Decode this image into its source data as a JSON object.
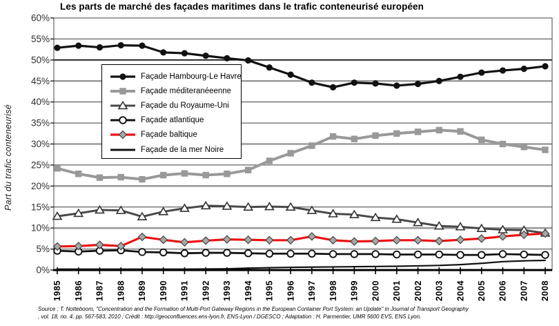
{
  "chart_data": {
    "type": "line",
    "title": "Les parts de marché des façades maritimes dans le trafic conteneurisé européen",
    "ylabel": "Part du trafic conteneurisé",
    "xlabel": "",
    "x": [
      1985,
      1986,
      1987,
      1988,
      1989,
      1990,
      1991,
      1992,
      1993,
      1994,
      1995,
      1996,
      1997,
      1998,
      1999,
      2000,
      2001,
      2002,
      2003,
      2004,
      2005,
      2006,
      2007,
      2008
    ],
    "ylim": [
      0,
      60
    ],
    "ytick_step": 5,
    "ytick_suffix": "%",
    "grid": true,
    "legend_position": "inside-upper-left",
    "gridline_styles": {
      "gray_thick": [
        10,
        20,
        30,
        45
      ],
      "dark_medium": [
        50
      ],
      "thin": [
        5,
        15,
        25,
        35,
        40,
        55
      ]
    },
    "series": [
      {
        "name": "Façade Hambourg-Le Havre",
        "color": "#111111",
        "marker": "circle-filled",
        "line_width": 3.2,
        "values": [
          52.9,
          53.4,
          53.0,
          53.5,
          53.4,
          51.8,
          51.6,
          51.0,
          50.4,
          49.9,
          48.2,
          46.5,
          44.6,
          43.5,
          44.6,
          44.4,
          43.9,
          44.3,
          45.0,
          46.0,
          47.0,
          47.5,
          47.9,
          48.5
        ]
      },
      {
        "name": "Façade méditeranéeenne",
        "color": "#999999",
        "marker": "square-filled",
        "line_width": 4,
        "values": [
          24.2,
          22.9,
          22.0,
          22.1,
          21.6,
          22.6,
          23.0,
          22.6,
          22.9,
          23.8,
          26.0,
          27.8,
          29.6,
          31.8,
          31.2,
          32.0,
          32.5,
          32.9,
          33.3,
          33.0,
          31.0,
          30.0,
          29.3,
          28.6
        ]
      },
      {
        "name": "Façade du Royaume-Uni",
        "color": "#4a4a4a",
        "marker": "triangle-open",
        "line_width": 3,
        "values": [
          12.8,
          13.5,
          14.3,
          14.2,
          12.7,
          13.9,
          14.7,
          15.3,
          15.2,
          15.0,
          15.1,
          15.0,
          14.2,
          13.4,
          13.2,
          12.5,
          12.1,
          11.3,
          10.5,
          10.3,
          9.9,
          9.6,
          9.5,
          8.8
        ]
      },
      {
        "name": "Façade atlantique",
        "color": "#111111",
        "marker": "circle-open",
        "line_width": 2.8,
        "values": [
          4.6,
          4.4,
          4.6,
          4.7,
          4.3,
          4.2,
          4.0,
          4.1,
          4.1,
          4.0,
          3.9,
          3.9,
          3.9,
          3.8,
          3.8,
          3.8,
          3.7,
          3.7,
          3.7,
          3.6,
          3.6,
          3.8,
          3.7,
          3.6
        ]
      },
      {
        "name": "Façade baltique",
        "color": "#ee1111",
        "marker": "diamond-gray",
        "line_width": 3.2,
        "values": [
          5.6,
          5.7,
          6.0,
          5.7,
          7.9,
          7.2,
          6.6,
          7.0,
          7.3,
          7.2,
          7.1,
          7.1,
          8.0,
          7.1,
          6.8,
          6.9,
          7.1,
          7.1,
          6.9,
          7.2,
          7.5,
          8.0,
          8.4,
          8.7
        ]
      },
      {
        "name": "Façade de la mer Noire",
        "color": "#111111",
        "marker": "none",
        "line_width": 2.2,
        "values": [
          0.2,
          0.2,
          0.2,
          0.2,
          0.2,
          0.2,
          0.2,
          0.25,
          0.3,
          0.45,
          0.55,
          0.65,
          0.7,
          0.75,
          0.8,
          0.85,
          0.9,
          1.0,
          1.1,
          1.3,
          1.6,
          2.0,
          2.2,
          2.3
        ]
      }
    ]
  },
  "source": {
    "line1": "Source :  T. Notteboom, \"Concentration and the Formation of Multi-Port Gateway Regions in the European Container Port System: an Update\" in Journal of Transport Geography",
    "line2": ", vol. 18, no. 4, pp. 567-583, 2010 ; Crédit : http://geoconfluences.ens-lyon.fr, ENS-Lyon / DGESCO ; Adaptation : H. Parmentier, UMR 5600 EVS, ENS Lyon."
  }
}
